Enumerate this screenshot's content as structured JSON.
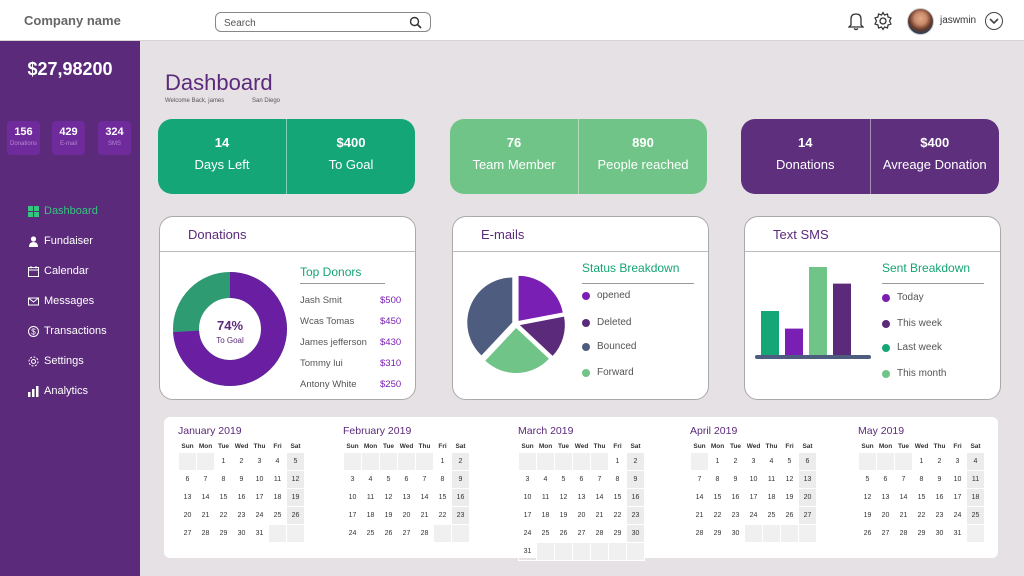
{
  "header": {
    "company": "Company name",
    "search_placeholder": "Search",
    "username": "jaswmin"
  },
  "sidebar": {
    "total": "$27,98200",
    "mini": [
      {
        "num": "156",
        "label": "Donations"
      },
      {
        "num": "429",
        "label": "E-mail"
      },
      {
        "num": "324",
        "label": "SMS"
      }
    ],
    "items": [
      {
        "label": "Dashboard",
        "icon": "dashboard-icon",
        "active": true
      },
      {
        "label": "Fundaiser",
        "icon": "person-icon"
      },
      {
        "label": "Calendar",
        "icon": "calendar-icon"
      },
      {
        "label": "Messages",
        "icon": "envelope-icon"
      },
      {
        "label": "Transactions",
        "icon": "dollar-icon"
      },
      {
        "label": "Settings",
        "icon": "gear-icon"
      },
      {
        "label": "Analytics",
        "icon": "chart-icon"
      }
    ]
  },
  "main": {
    "title": "Dashboard",
    "welcome": "Welcome Back, james",
    "location": "San Diego"
  },
  "stats": [
    {
      "a_num": "14",
      "a_label": "Days Left",
      "b_num": "$400",
      "b_label": "To Goal",
      "color": "#15a677"
    },
    {
      "a_num": "76",
      "a_label": "Team Member",
      "b_num": "890",
      "b_label": "People reached",
      "color": "#70c487"
    },
    {
      "a_num": "14",
      "a_label": "Donations",
      "b_num": "$400",
      "b_label": "Avreage Donation",
      "color": "#5d2f7d"
    }
  ],
  "donations": {
    "title": "Donations",
    "goal_pct": "74%",
    "goal_label": "To Goal",
    "goal_fraction": 0.74,
    "top_title": "Top Donors",
    "donors": [
      {
        "name": "Jash Smit",
        "amount": "$500"
      },
      {
        "name": "Wcas Tomas",
        "amount": "$450"
      },
      {
        "name": "James jefferson",
        "amount": "$430"
      },
      {
        "name": "Tommy lui",
        "amount": "$310"
      },
      {
        "name": "Antony White",
        "amount": "$250"
      }
    ]
  },
  "emails": {
    "title": "E-mails",
    "section": "Status Breakdown",
    "legend": [
      {
        "label": "opened",
        "color": "#7a1fb3"
      },
      {
        "label": "Deleted",
        "color": "#5b2a7a"
      },
      {
        "label": "Bounced",
        "color": "#4e5c80"
      },
      {
        "label": "Forward",
        "color": "#70c487"
      }
    ],
    "chart_data": {
      "type": "pie",
      "labels": [
        "opened",
        "Deleted",
        "Forward",
        "Bounced"
      ],
      "values": [
        22,
        15,
        25,
        38
      ]
    }
  },
  "sms": {
    "title": "Text SMS",
    "section": "Sent Breakdown",
    "legend": [
      {
        "label": "Today",
        "color": "#7a1fb3"
      },
      {
        "label": "This week",
        "color": "#5b2a7a"
      },
      {
        "label": "Last week",
        "color": "#15a677"
      },
      {
        "label": "This month",
        "color": "#70c487"
      }
    ],
    "chart_data": {
      "type": "bar",
      "values": [
        45,
        27,
        90,
        73
      ],
      "colors": [
        "#15a677",
        "#7a1fb3",
        "#70c487",
        "#5b2a7a"
      ]
    }
  },
  "calendar": {
    "days": [
      "Sun",
      "Mon",
      "Tue",
      "Wed",
      "Thu",
      "Fri",
      "Sat"
    ],
    "months": [
      {
        "name": "January 2019",
        "start": 2,
        "length": 31
      },
      {
        "name": "February 2019",
        "start": 5,
        "length": 28
      },
      {
        "name": "March 2019",
        "start": 5,
        "length": 31
      },
      {
        "name": "April 2019",
        "start": 1,
        "length": 30
      },
      {
        "name": "May 2019",
        "start": 3,
        "length": 31
      }
    ]
  }
}
